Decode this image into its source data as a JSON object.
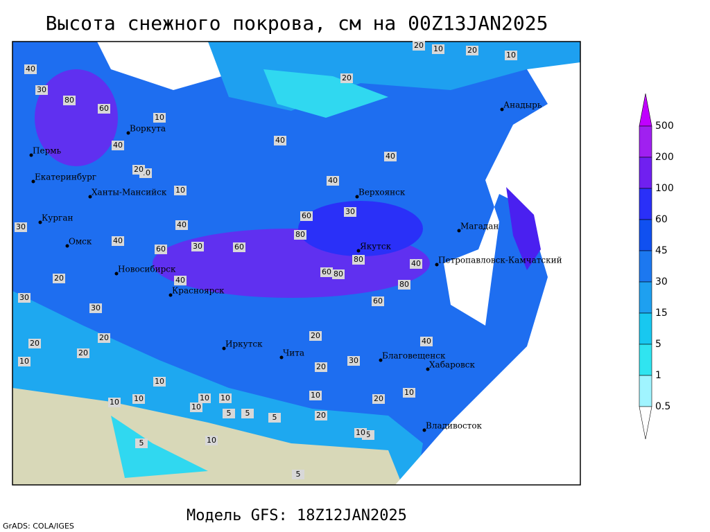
{
  "title": "Высота снежного покрова, см на 00Z13JAN2025",
  "subtitle": "Модель GFS: 18Z12JAN2025",
  "credit": "GrADS: COLA/IGES",
  "cities": [
    "Анадырь",
    "Воркута",
    "Пермь",
    "Екатеринбург",
    "Ханты-Мансийск",
    "Курган",
    "Омск",
    "Новосибирск",
    "Красноярск",
    "Иркутск",
    "Чита",
    "Верхоянск",
    "Якутск",
    "Магадан",
    "Петропавловск-Камчатский",
    "Благовещенск",
    "Хабаровск",
    "Владивосток"
  ],
  "legend": {
    "levels": [
      500,
      200,
      100,
      60,
      45,
      30,
      15,
      5,
      1,
      0.5
    ],
    "colors": [
      "#c000ff",
      "#a020f0",
      "#7020f0",
      "#2a30f8",
      "#1050f0",
      "#1c78f0",
      "#1ea0f0",
      "#18c8f0",
      "#30e4f0",
      "#a0f4ff",
      "#ffffff"
    ]
  },
  "contour_labels": [
    40,
    30,
    80,
    60,
    40,
    40,
    10,
    20,
    30,
    20,
    10,
    10,
    10,
    10,
    40,
    40,
    40,
    30,
    60,
    80,
    60,
    60,
    80,
    60,
    80,
    40,
    40,
    20,
    30,
    40,
    80,
    40,
    60,
    20,
    30,
    20,
    10,
    10,
    10,
    5,
    5,
    5,
    10,
    5,
    10,
    20,
    5,
    5,
    10,
    20,
    30,
    20,
    40,
    20,
    30,
    20,
    10,
    10,
    20,
    20,
    10,
    10
  ]
}
